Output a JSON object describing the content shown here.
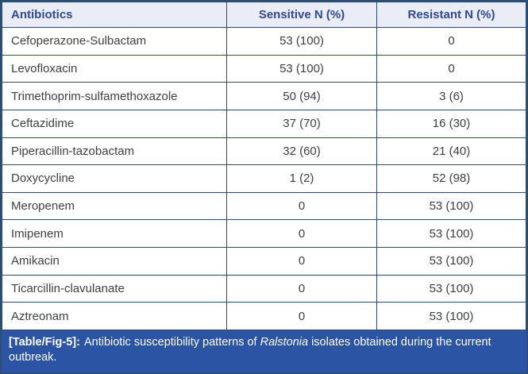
{
  "colors": {
    "grid_border": "#2e4d73",
    "header_bg": "#ebedf6",
    "header_text": "#2f4898",
    "body_text": "#3f3f3f",
    "caption_bg": "#2b55a4",
    "caption_text": "#ffffff"
  },
  "table": {
    "columns": [
      "Antibiotics",
      "Sensitive N (%)",
      "Resistant N (%)"
    ],
    "rows": [
      {
        "antibiotic": "Cefoperazone-Sulbactam",
        "sensitive": "53 (100)",
        "resistant": "0"
      },
      {
        "antibiotic": "Levofloxacin",
        "sensitive": "53 (100)",
        "resistant": "0"
      },
      {
        "antibiotic": "Trimethoprim-sulfamethoxazole",
        "sensitive": "50 (94)",
        "resistant": "3 (6)"
      },
      {
        "antibiotic": "Ceftazidime",
        "sensitive": "37 (70)",
        "resistant": "16 (30)"
      },
      {
        "antibiotic": "Piperacillin-tazobactam",
        "sensitive": "32 (60)",
        "resistant": "21 (40)"
      },
      {
        "antibiotic": "Doxycycline",
        "sensitive": "1 (2)",
        "resistant": "52 (98)"
      },
      {
        "antibiotic": "Meropenem",
        "sensitive": "0",
        "resistant": "53 (100)"
      },
      {
        "antibiotic": "Imipenem",
        "sensitive": "0",
        "resistant": "53 (100)"
      },
      {
        "antibiotic": "Amikacin",
        "sensitive": "0",
        "resistant": "53 (100)"
      },
      {
        "antibiotic": "Ticarcillin-clavulanate",
        "sensitive": "0",
        "resistant": "53 (100)"
      },
      {
        "antibiotic": "Aztreonam",
        "sensitive": "0",
        "resistant": "53 (100)"
      }
    ]
  },
  "caption": {
    "label": "[Table/Fig-5]:",
    "text_before_italic": "Antibiotic susceptibility patterns of",
    "italic_term": "Ralstonia",
    "text_after_italic": "isolates obtained during the current outbreak."
  }
}
